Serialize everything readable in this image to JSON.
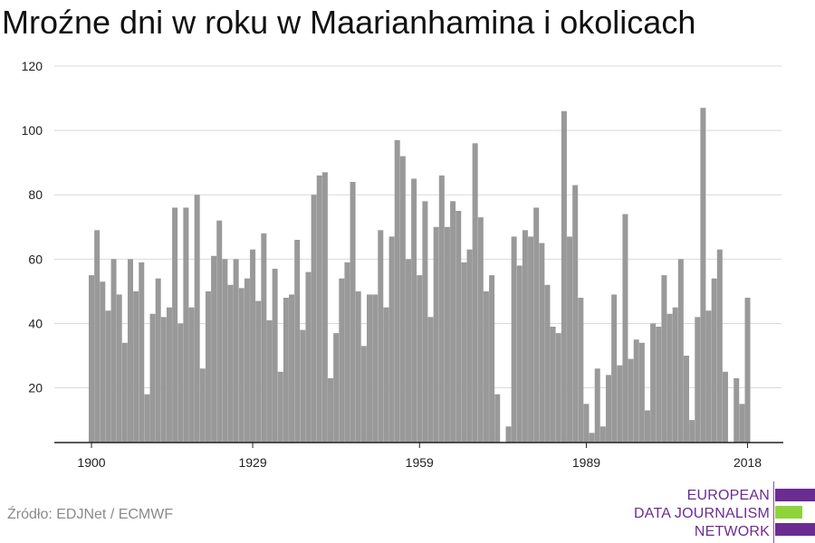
{
  "title": "Mroźne dni w roku w Maarianhamina i okolicach",
  "source": "Źródło: EDJNet / ECMWF",
  "logo": {
    "lines": [
      "EUROPEAN",
      "DATA JOURNALISM",
      "NETWORK"
    ],
    "colors": {
      "text": "#6b2c91",
      "bar_top": "#6b2c91",
      "bar_mid": "#8fd33a",
      "bar_bottom": "#6b2c91"
    }
  },
  "chart_data": {
    "type": "bar",
    "bar_color": "#999999",
    "grid": true,
    "ylim": [
      3,
      120
    ],
    "yticks": [
      20,
      40,
      60,
      80,
      100,
      120
    ],
    "xtick_labels": [
      "1900",
      "1929",
      "1959",
      "1989",
      "2018"
    ],
    "x": [
      1900,
      1901,
      1902,
      1903,
      1904,
      1905,
      1906,
      1907,
      1908,
      1909,
      1910,
      1911,
      1912,
      1913,
      1914,
      1915,
      1916,
      1917,
      1918,
      1919,
      1920,
      1921,
      1922,
      1923,
      1924,
      1925,
      1926,
      1927,
      1928,
      1929,
      1930,
      1931,
      1932,
      1933,
      1934,
      1935,
      1936,
      1937,
      1938,
      1939,
      1940,
      1941,
      1942,
      1943,
      1944,
      1945,
      1946,
      1947,
      1948,
      1949,
      1950,
      1951,
      1952,
      1953,
      1954,
      1955,
      1956,
      1957,
      1958,
      1959,
      1960,
      1961,
      1962,
      1963,
      1964,
      1965,
      1966,
      1967,
      1968,
      1969,
      1970,
      1971,
      1972,
      1973,
      1974,
      1975,
      1976,
      1977,
      1978,
      1979,
      1980,
      1981,
      1982,
      1983,
      1984,
      1985,
      1986,
      1987,
      1988,
      1989,
      1990,
      1991,
      1992,
      1993,
      1994,
      1995,
      1996,
      1997,
      1998,
      1999,
      2000,
      2001,
      2002,
      2003,
      2004,
      2005,
      2006,
      2007,
      2008,
      2009,
      2010,
      2011,
      2012,
      2013,
      2014,
      2015,
      2016,
      2017,
      2018
    ],
    "values": [
      55,
      69,
      53,
      44,
      60,
      49,
      34,
      60,
      50,
      59,
      18,
      43,
      54,
      42,
      45,
      76,
      40,
      76,
      45,
      80,
      26,
      50,
      61,
      72,
      60,
      52,
      60,
      51,
      54,
      63,
      47,
      68,
      41,
      57,
      25,
      48,
      49,
      66,
      38,
      56,
      80,
      86,
      87,
      23,
      37,
      54,
      59,
      84,
      50,
      33,
      49,
      49,
      69,
      45,
      67,
      97,
      92,
      60,
      85,
      55,
      78,
      42,
      70,
      86,
      70,
      78,
      75,
      59,
      63,
      96,
      73,
      50,
      55,
      18,
      2,
      8,
      67,
      58,
      69,
      67,
      76,
      65,
      52,
      39,
      37,
      106,
      67,
      83,
      48,
      15,
      6,
      26,
      8,
      24,
      49,
      27,
      74,
      29,
      35,
      34,
      13,
      40,
      39,
      55,
      43,
      45,
      60,
      30,
      10,
      42,
      107,
      44,
      54,
      63,
      25,
      0,
      23,
      15,
      48
    ]
  }
}
